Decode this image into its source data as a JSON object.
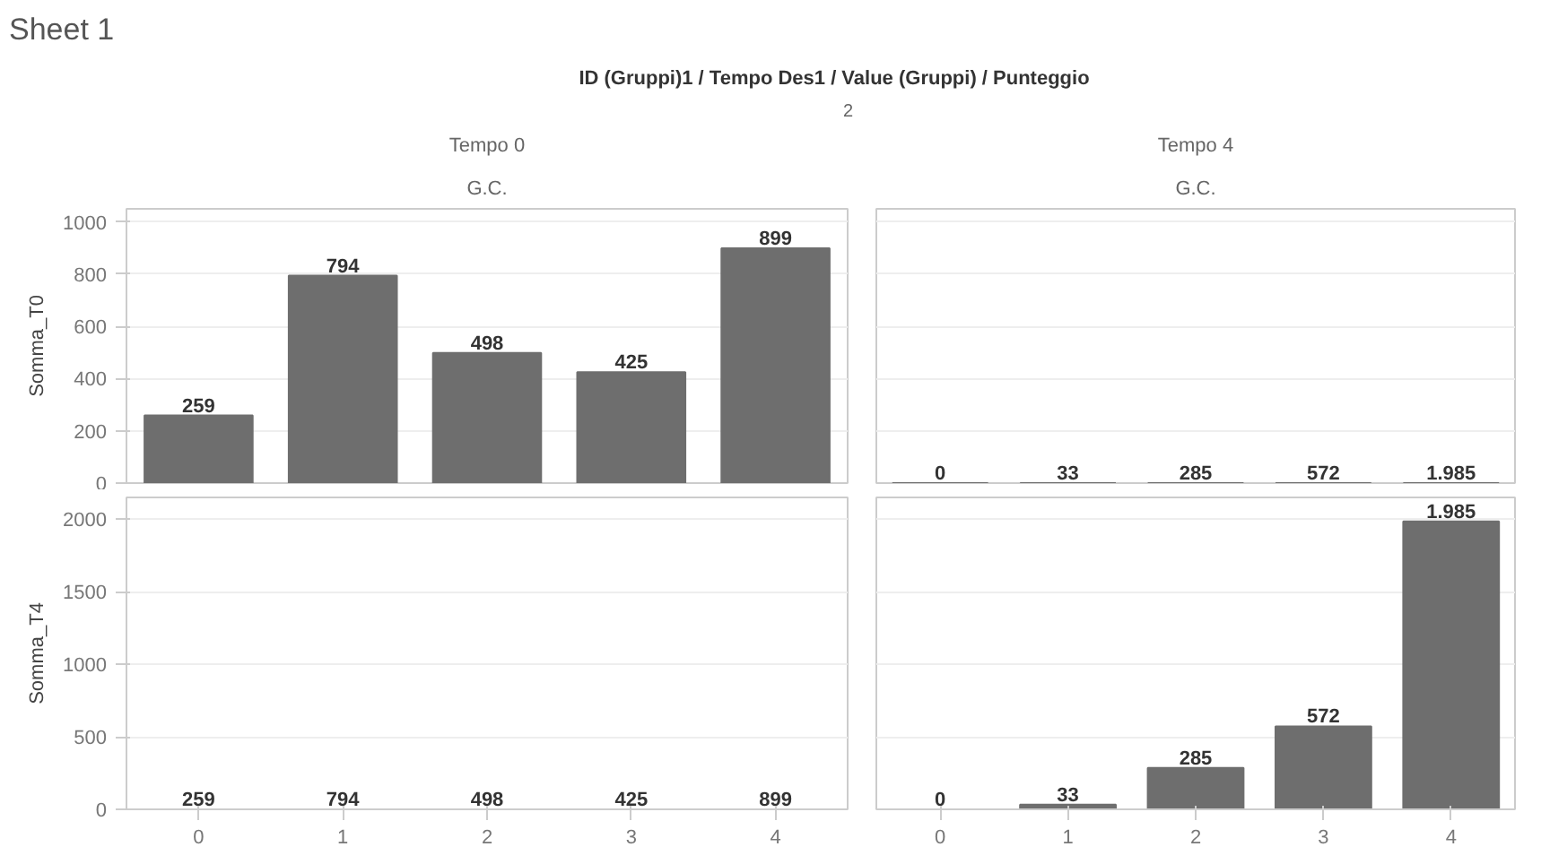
{
  "chart_data": [
    {
      "type": "bar",
      "title": "Tempo 0",
      "subtitle": "G.C.",
      "ylabel": "Somma_T0",
      "annotations": [
        "Sheet 1",
        "ID (Gruppi)1 / Tempo Des1 / Value (Gruppi) / Punteggio",
        "2"
      ],
      "categories": [
        "0",
        "1",
        "2",
        "3",
        "4"
      ],
      "values": [
        259,
        794,
        498,
        425,
        899
      ],
      "color": "#6e6e6e",
      "data_labels": true,
      "ylim": [
        0,
        1050
      ],
      "yticks": [
        0,
        200,
        400,
        600,
        800,
        1000
      ],
      "grid": "y",
      "tick_labels": "y"
    },
    {
      "type": "bar",
      "title": "Tempo 4",
      "subtitle": "G.C.",
      "categories": [
        "0",
        "1",
        "2",
        "3",
        "4"
      ],
      "values": [
        0,
        0,
        0,
        0,
        0
      ],
      "annotations": [
        {
          "text": "0",
          "x": "0",
          "y": 0
        },
        {
          "text": "33",
          "x": "1",
          "y": 0
        },
        {
          "text": "285",
          "x": "2",
          "y": 0
        },
        {
          "text": "572",
          "x": "3",
          "y": 0
        },
        {
          "text": "1.985",
          "x": "4",
          "y": 0
        }
      ],
      "color": "#6e6e6e",
      "ylim": [
        0,
        1050
      ],
      "yticks": [
        0,
        200,
        400,
        600,
        800,
        1000
      ],
      "grid": "y",
      "tick_labels": false
    },
    {
      "type": "bar",
      "ylabel": "Somma_T4",
      "categories": [
        "0",
        "1",
        "2",
        "3",
        "4"
      ],
      "values": [
        0,
        0,
        0,
        0,
        0
      ],
      "annotations": [
        "259",
        "794",
        "498",
        "425",
        "899"
      ],
      "color": "#6e6e6e",
      "ylim": [
        0,
        2150
      ],
      "yticks": [
        0,
        500,
        1000,
        1500,
        2000
      ],
      "grid": "y"
    },
    {
      "type": "bar",
      "categories": [
        "0",
        "1",
        "2",
        "3",
        "4"
      ],
      "values": [
        0,
        33,
        285,
        572,
        1985
      ],
      "value_labels": [
        "0",
        "33",
        "285",
        "572",
        "1.985"
      ],
      "color": "#6e6e6e",
      "ylim": [
        0,
        2150
      ],
      "yticks": [
        0,
        500,
        1000,
        1500,
        2000
      ],
      "grid": "y",
      "tick_labels": "x"
    }
  ]
}
